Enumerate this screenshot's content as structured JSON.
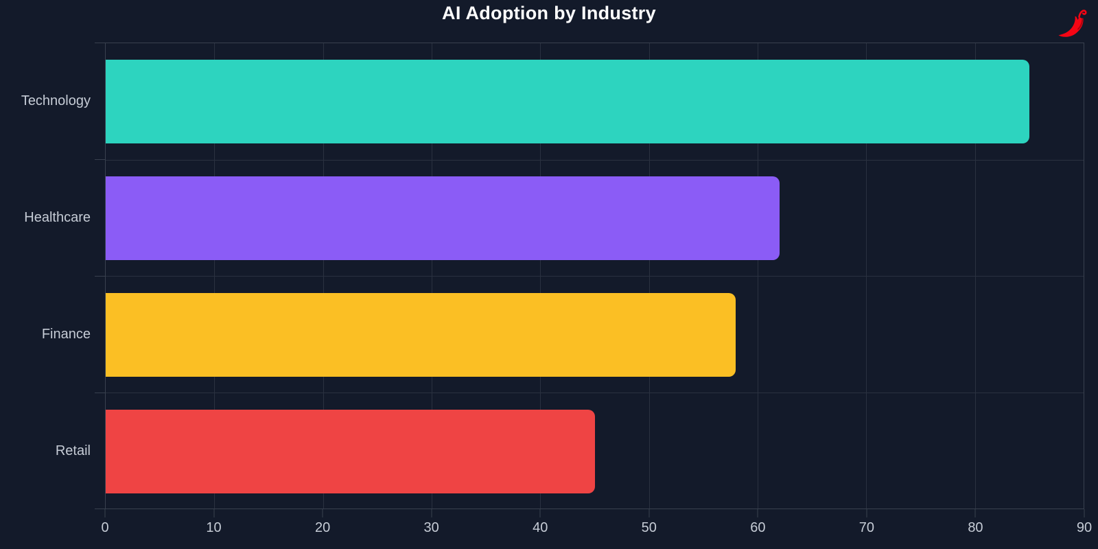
{
  "header": {
    "title": "AI Adoption by Industry"
  },
  "watermark": {
    "icon": "chili-pepper-icon",
    "color": "#f50514"
  },
  "colors": {
    "background": "#131a2a",
    "plot_border": "#39414f",
    "gridline": "#2a3140",
    "tick": "#39414f",
    "label_text": "#c6ccd6",
    "title_text": "#ffffff"
  },
  "chart_data": {
    "type": "bar",
    "orientation": "horizontal",
    "title": "AI Adoption by Industry",
    "categories": [
      "Technology",
      "Healthcare",
      "Finance",
      "Retail"
    ],
    "values": [
      85,
      62,
      58,
      45
    ],
    "bar_colors": [
      "#2dd4bf",
      "#8b5cf6",
      "#fbbf24",
      "#ef4444"
    ],
    "xlabel": "",
    "ylabel": "",
    "xlim": [
      0,
      90
    ],
    "xticks": [
      0,
      10,
      20,
      30,
      40,
      50,
      60,
      70,
      80,
      90
    ],
    "grid": true,
    "legend": false
  }
}
